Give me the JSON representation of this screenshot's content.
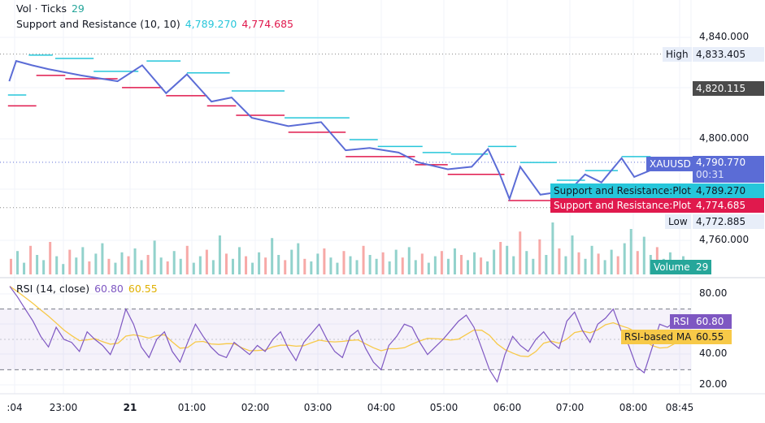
{
  "legend": {
    "vol_label": "Vol · Ticks",
    "vol_value": "29",
    "sr_label": "Support and Resistance (10, 10)",
    "sr_res": "4,789.270",
    "sr_sup": "4,774.685",
    "rsi_label": "RSI (14, close)",
    "rsi_value": "60.80",
    "rsi_ma": "60.55"
  },
  "price_axis": [
    "4,840.000",
    "4,800.000",
    "4,760.000"
  ],
  "tags": {
    "high_label": "High",
    "high_value": "4,833.405",
    "prev_close": "4,820.115",
    "symbol": "XAUUSD",
    "last": "4,790.770",
    "countdown": "00:31",
    "plot_label": "Support and Resistance:Plot",
    "res_value": "4,789.270",
    "sup_value": "4,774.685",
    "low_label": "Low",
    "low_value": "4,772.885",
    "volume_label": "Volume",
    "volume_value": "29"
  },
  "rsi_axis": [
    "80.00",
    "40.00",
    "20.00"
  ],
  "rsi_tags": {
    "rsi_label": "RSI",
    "rsi_value": "60.80",
    "ma_label": "RSI-based MA",
    "ma_value": "60.55"
  },
  "time_axis": [
    ":04",
    "23:00",
    "21",
    "01:00",
    "02:00",
    "03:00",
    "04:00",
    "05:00",
    "06:00",
    "07:00",
    "08:00",
    "08:45"
  ],
  "colors": {
    "price": "#5b6cd6",
    "res": "#26c6da",
    "sup": "#e0194d",
    "rsi": "#7e57c2",
    "ma": "#f7c948",
    "vol_up": "#26a69a",
    "vol_dn": "#ef5350"
  },
  "chart_data": {
    "type": "line",
    "x_unit": "hours (from 00:00 of previous day)",
    "ylim_price": [
      4750,
      4845
    ],
    "ylim_rsi": [
      15,
      88
    ],
    "price": [
      [
        22.14,
        4822.7
      ],
      [
        22.25,
        4830.7
      ],
      [
        22.5,
        4829
      ],
      [
        22.76,
        4827.5
      ],
      [
        23.28,
        4825
      ],
      [
        23.86,
        4822.7
      ],
      [
        24.25,
        4829
      ],
      [
        24.63,
        4818
      ],
      [
        24.96,
        4825.4
      ],
      [
        25.35,
        4814.7
      ],
      [
        25.67,
        4816.3
      ],
      [
        25.99,
        4808.3
      ],
      [
        26.57,
        4805
      ],
      [
        27.09,
        4806.6
      ],
      [
        27.48,
        4795.5
      ],
      [
        27.86,
        4796.4
      ],
      [
        28.32,
        4794.6
      ],
      [
        28.64,
        4790.7
      ],
      [
        29.1,
        4788
      ],
      [
        29.48,
        4789
      ],
      [
        29.74,
        4796
      ],
      [
        29.93,
        4785.8
      ],
      [
        30.08,
        4776.3
      ],
      [
        30.25,
        4789
      ],
      [
        30.57,
        4778
      ],
      [
        31.03,
        4779.6
      ],
      [
        31.28,
        4786
      ],
      [
        31.54,
        4782.8
      ],
      [
        31.86,
        4792.4
      ],
      [
        32.06,
        4785
      ],
      [
        32.32,
        4787.6
      ],
      [
        32.64,
        4790.8
      ]
    ],
    "resistance": [
      [
        22.12,
        22.41,
        4817.3
      ],
      [
        22.45,
        22.83,
        4833
      ],
      [
        22.87,
        23.48,
        4831.7
      ],
      [
        23.48,
        24.19,
        4826.6
      ],
      [
        24.32,
        24.86,
        4830.7
      ],
      [
        24.96,
        25.64,
        4826
      ],
      [
        25.67,
        26.51,
        4818.9
      ],
      [
        26.51,
        27.54,
        4808.3
      ],
      [
        27.54,
        27.99,
        4799.7
      ],
      [
        27.99,
        28.7,
        4797
      ],
      [
        28.7,
        29.15,
        4794.6
      ],
      [
        29.15,
        29.74,
        4794
      ],
      [
        29.74,
        30.19,
        4797
      ],
      [
        30.25,
        30.83,
        4790.7
      ],
      [
        30.83,
        31.28,
        4783.7
      ],
      [
        31.28,
        31.8,
        4787.5
      ],
      [
        31.86,
        32.32,
        4793
      ]
    ],
    "support": [
      [
        22.12,
        22.57,
        4813
      ],
      [
        22.57,
        23.03,
        4825
      ],
      [
        23.03,
        23.86,
        4823.7
      ],
      [
        23.93,
        24.57,
        4820.2
      ],
      [
        24.63,
        25.28,
        4817
      ],
      [
        25.28,
        25.74,
        4813
      ],
      [
        25.74,
        26.51,
        4809.3
      ],
      [
        26.57,
        27.48,
        4802.6
      ],
      [
        27.48,
        28.58,
        4793
      ],
      [
        28.58,
        29.1,
        4789.8
      ],
      [
        29.1,
        30.0,
        4786
      ],
      [
        30.06,
        30.77,
        4775.7
      ]
    ],
    "volume": [
      12,
      18,
      9,
      22,
      15,
      11,
      25,
      14,
      8,
      19,
      13,
      21,
      10,
      16,
      24,
      12,
      9,
      17,
      14,
      20,
      11,
      15,
      26,
      13,
      10,
      18,
      12,
      22,
      9,
      14,
      19,
      11,
      30,
      16,
      12,
      21,
      14,
      9,
      17,
      13,
      28,
      15,
      11,
      19,
      24,
      12,
      10,
      16,
      20,
      13,
      9,
      18,
      14,
      11,
      22,
      15,
      12,
      17,
      10,
      19,
      13,
      21,
      11,
      16,
      9,
      14,
      18,
      12,
      20,
      15,
      11,
      17,
      13,
      10,
      19,
      25,
      22,
      14,
      33,
      18,
      12,
      27,
      15,
      40,
      20,
      14,
      30,
      17,
      12,
      22,
      16,
      11,
      19,
      14,
      24,
      35,
      18,
      29,
      15,
      21,
      12,
      17,
      10,
      14
    ],
    "rsi": [
      85,
      78,
      70,
      62,
      52,
      45,
      58,
      50,
      48,
      42,
      55,
      50,
      46,
      40,
      52,
      70,
      60,
      45,
      38,
      50,
      55,
      42,
      35,
      48,
      60,
      52,
      45,
      40,
      38,
      48,
      44,
      40,
      46,
      42,
      50,
      55,
      44,
      36,
      48,
      54,
      60,
      50,
      42,
      38,
      52,
      56,
      44,
      35,
      30,
      46,
      52,
      60,
      58,
      48,
      40,
      45,
      50,
      56,
      62,
      66,
      58,
      44,
      30,
      22,
      40,
      52,
      46,
      42,
      50,
      55,
      48,
      44,
      62,
      68,
      56,
      48,
      60,
      64,
      70,
      56,
      46,
      32,
      28,
      44,
      60,
      58,
      62,
      60.8
    ],
    "rsi_band": [
      30,
      70
    ]
  }
}
